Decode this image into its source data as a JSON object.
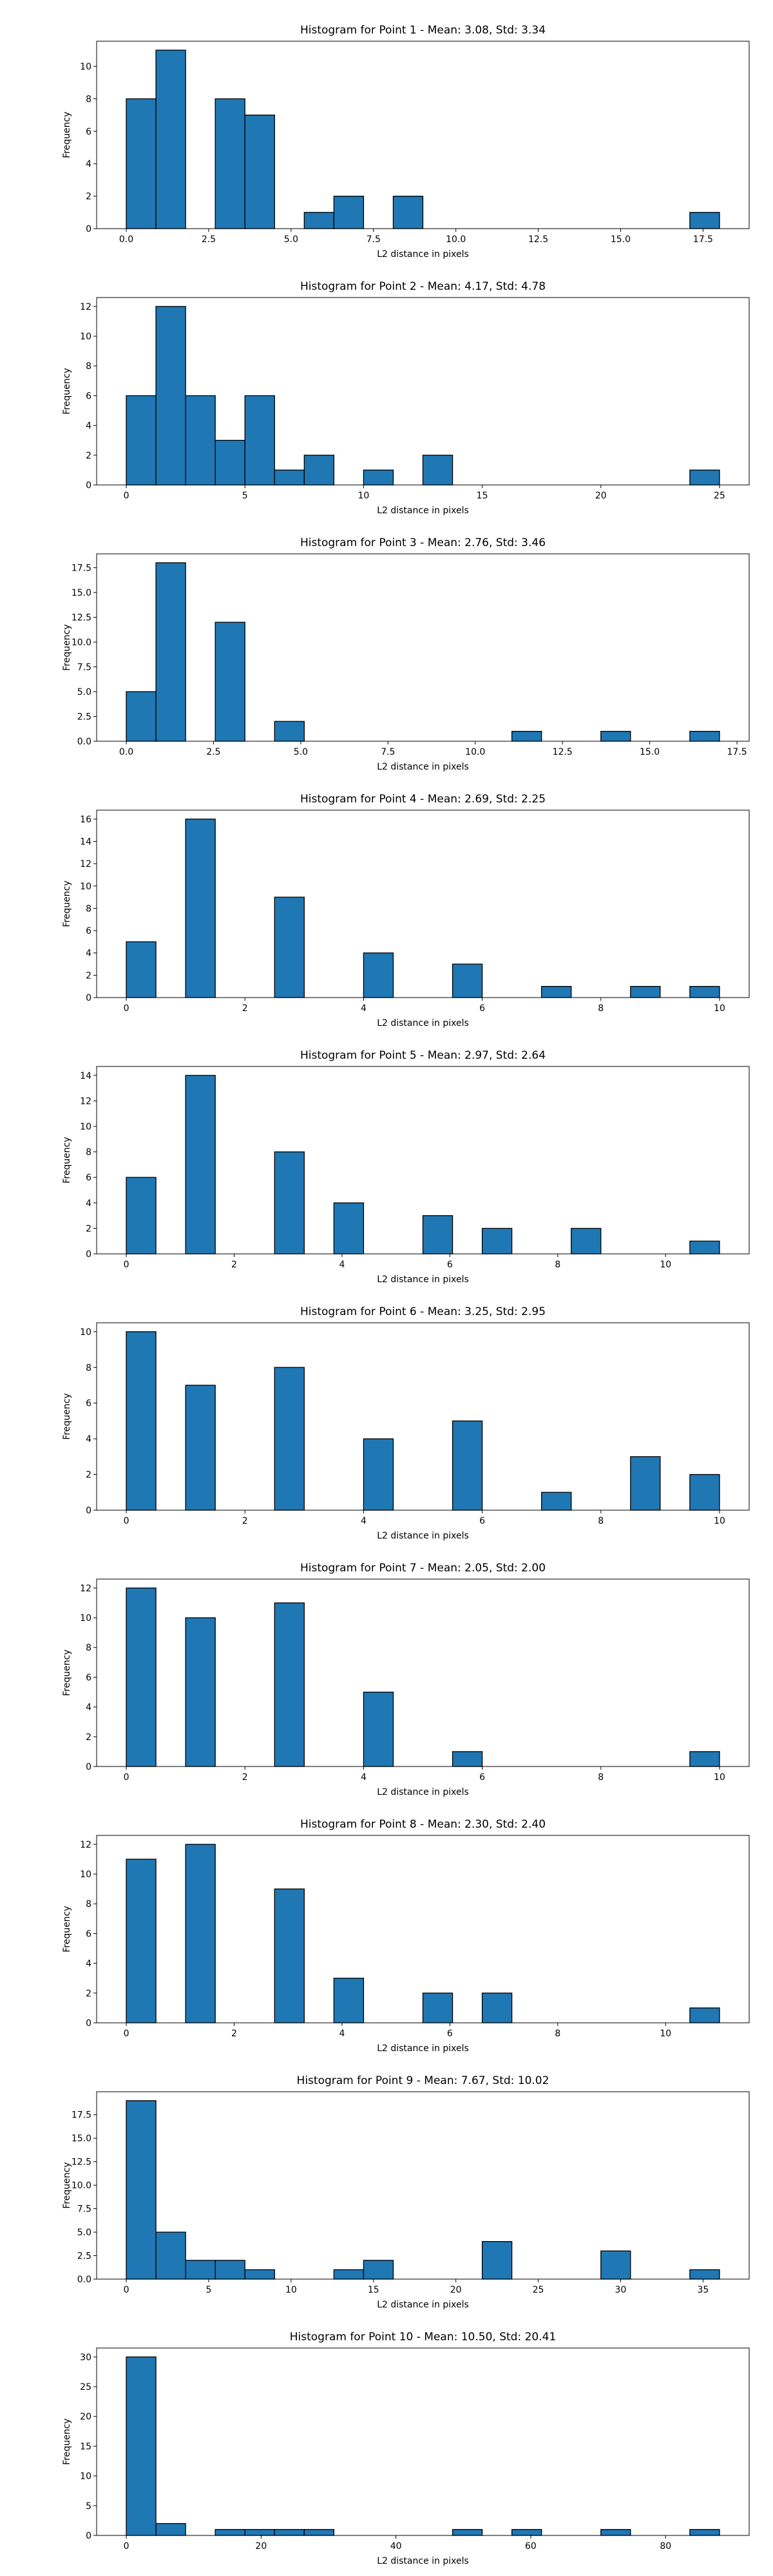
{
  "figure": {
    "background": "#ffffff",
    "bar_color": "#1f77b4",
    "edge_color": "#000000"
  },
  "chart_data": [
    {
      "type": "bar",
      "title": "Histogram for Point 1 - Mean: 3.08, Std: 3.34",
      "xlabel": "L2 distance in pixels",
      "ylabel": "Frequency",
      "xlim": [
        -0.9,
        18.9
      ],
      "ylim": [
        0,
        11.55
      ],
      "xticks": [
        0,
        2.5,
        5,
        7.5,
        10,
        12.5,
        15,
        17.5
      ],
      "xtick_labels": [
        "0.0",
        "2.5",
        "5.0",
        "7.5",
        "10.0",
        "12.5",
        "15.0",
        "17.5"
      ],
      "yticks": [
        0,
        2,
        4,
        6,
        8,
        10
      ],
      "ytick_labels": [
        "0",
        "2",
        "4",
        "6",
        "8",
        "10"
      ],
      "bins": [
        [
          0.0,
          0.9
        ],
        [
          0.9,
          1.8
        ],
        [
          2.7,
          3.6
        ],
        [
          3.6,
          4.5
        ],
        [
          5.4,
          6.3
        ],
        [
          6.3,
          7.2
        ],
        [
          8.1,
          9.0
        ],
        [
          17.1,
          18.0
        ]
      ],
      "values": [
        8,
        11,
        8,
        7,
        1,
        2,
        2,
        1
      ]
    },
    {
      "type": "bar",
      "title": "Histogram for Point 2 - Mean: 4.17, Std: 4.78",
      "xlabel": "L2 distance in pixels",
      "ylabel": "Frequency",
      "xlim": [
        -1.25,
        26.25
      ],
      "ylim": [
        0,
        12.6
      ],
      "xticks": [
        0,
        5,
        10,
        15,
        20,
        25
      ],
      "xtick_labels": [
        "0",
        "5",
        "10",
        "15",
        "20",
        "25"
      ],
      "yticks": [
        0,
        2,
        4,
        6,
        8,
        10,
        12
      ],
      "ytick_labels": [
        "0",
        "2",
        "4",
        "6",
        "8",
        "10",
        "12"
      ],
      "bins": [
        [
          0.0,
          1.25
        ],
        [
          1.25,
          2.5
        ],
        [
          2.5,
          3.75
        ],
        [
          3.75,
          5.0
        ],
        [
          5.0,
          6.25
        ],
        [
          6.25,
          7.5
        ],
        [
          7.5,
          8.75
        ],
        [
          10.0,
          11.25
        ],
        [
          12.5,
          13.75
        ],
        [
          23.75,
          25.0
        ]
      ],
      "values": [
        6,
        12,
        6,
        3,
        6,
        1,
        2,
        1,
        2,
        1
      ]
    },
    {
      "type": "bar",
      "title": "Histogram for Point 3 - Mean: 2.76, Std: 3.46",
      "xlabel": "L2 distance in pixels",
      "ylabel": "Frequency",
      "xlim": [
        -0.85,
        17.85
      ],
      "ylim": [
        0,
        18.9
      ],
      "xticks": [
        0,
        2.5,
        5,
        7.5,
        10,
        12.5,
        15,
        17.5
      ],
      "xtick_labels": [
        "0.0",
        "2.5",
        "5.0",
        "7.5",
        "10.0",
        "12.5",
        "15.0",
        "17.5"
      ],
      "yticks": [
        0,
        2.5,
        5,
        7.5,
        10,
        12.5,
        15,
        17.5
      ],
      "ytick_labels": [
        "0.0",
        "2.5",
        "5.0",
        "7.5",
        "10.0",
        "12.5",
        "15.0",
        "17.5"
      ],
      "bins": [
        [
          0.0,
          0.85
        ],
        [
          0.85,
          1.7
        ],
        [
          2.55,
          3.4
        ],
        [
          4.25,
          5.1
        ],
        [
          11.05,
          11.9
        ],
        [
          13.6,
          14.45
        ],
        [
          16.15,
          17.0
        ]
      ],
      "values": [
        5,
        18,
        12,
        2,
        1,
        1,
        1
      ]
    },
    {
      "type": "bar",
      "title": "Histogram for Point 4 - Mean: 2.69, Std: 2.25",
      "xlabel": "L2 distance in pixels",
      "ylabel": "Frequency",
      "xlim": [
        -0.5,
        10.5
      ],
      "ylim": [
        0,
        16.8
      ],
      "xticks": [
        0,
        2,
        4,
        6,
        8,
        10
      ],
      "xtick_labels": [
        "0",
        "2",
        "4",
        "6",
        "8",
        "10"
      ],
      "yticks": [
        0,
        2,
        4,
        6,
        8,
        10,
        12,
        14,
        16
      ],
      "ytick_labels": [
        "0",
        "2",
        "4",
        "6",
        "8",
        "10",
        "12",
        "14",
        "16"
      ],
      "bins": [
        [
          0.0,
          0.5
        ],
        [
          1.0,
          1.5
        ],
        [
          2.5,
          3.0
        ],
        [
          4.0,
          4.5
        ],
        [
          5.5,
          6.0
        ],
        [
          7.0,
          7.5
        ],
        [
          8.5,
          9.0
        ],
        [
          9.5,
          10.0
        ]
      ],
      "values": [
        5,
        16,
        9,
        4,
        3,
        1,
        1,
        1
      ]
    },
    {
      "type": "bar",
      "title": "Histogram for Point 5 - Mean: 2.97, Std: 2.64",
      "xlabel": "L2 distance in pixels",
      "ylabel": "Frequency",
      "xlim": [
        -0.55,
        11.55
      ],
      "ylim": [
        0,
        14.7
      ],
      "xticks": [
        0,
        2,
        4,
        6,
        8,
        10
      ],
      "xtick_labels": [
        "0",
        "2",
        "4",
        "6",
        "8",
        "10"
      ],
      "yticks": [
        0,
        2,
        4,
        6,
        8,
        10,
        12,
        14
      ],
      "ytick_labels": [
        "0",
        "2",
        "4",
        "6",
        "8",
        "10",
        "12",
        "14"
      ],
      "bins": [
        [
          0.0,
          0.55
        ],
        [
          1.1,
          1.65
        ],
        [
          2.75,
          3.3
        ],
        [
          3.85,
          4.4
        ],
        [
          5.5,
          6.05
        ],
        [
          6.6,
          7.15
        ],
        [
          8.25,
          8.8
        ],
        [
          10.45,
          11.0
        ]
      ],
      "values": [
        6,
        14,
        8,
        4,
        3,
        2,
        2,
        1
      ]
    },
    {
      "type": "bar",
      "title": "Histogram for Point 6 - Mean: 3.25, Std: 2.95",
      "xlabel": "L2 distance in pixels",
      "ylabel": "Frequency",
      "xlim": [
        -0.5,
        10.5
      ],
      "ylim": [
        0,
        10.5
      ],
      "xticks": [
        0,
        2,
        4,
        6,
        8,
        10
      ],
      "xtick_labels": [
        "0",
        "2",
        "4",
        "6",
        "8",
        "10"
      ],
      "yticks": [
        0,
        2,
        4,
        6,
        8,
        10
      ],
      "ytick_labels": [
        "0",
        "2",
        "4",
        "6",
        "8",
        "10"
      ],
      "bins": [
        [
          0.0,
          0.5
        ],
        [
          1.0,
          1.5
        ],
        [
          2.5,
          3.0
        ],
        [
          4.0,
          4.5
        ],
        [
          5.5,
          6.0
        ],
        [
          7.0,
          7.5
        ],
        [
          8.5,
          9.0
        ],
        [
          9.5,
          10.0
        ]
      ],
      "values": [
        10,
        7,
        8,
        4,
        5,
        1,
        3,
        2
      ]
    },
    {
      "type": "bar",
      "title": "Histogram for Point 7 - Mean: 2.05, Std: 2.00",
      "xlabel": "L2 distance in pixels",
      "ylabel": "Frequency",
      "xlim": [
        -0.5,
        10.5
      ],
      "ylim": [
        0,
        12.6
      ],
      "xticks": [
        0,
        2,
        4,
        6,
        8,
        10
      ],
      "xtick_labels": [
        "0",
        "2",
        "4",
        "6",
        "8",
        "10"
      ],
      "yticks": [
        0,
        2,
        4,
        6,
        8,
        10,
        12
      ],
      "ytick_labels": [
        "0",
        "2",
        "4",
        "6",
        "8",
        "10",
        "12"
      ],
      "bins": [
        [
          0.0,
          0.5
        ],
        [
          1.0,
          1.5
        ],
        [
          2.5,
          3.0
        ],
        [
          4.0,
          4.5
        ],
        [
          5.5,
          6.0
        ],
        [
          9.5,
          10.0
        ]
      ],
      "values": [
        12,
        10,
        11,
        5,
        1,
        1
      ]
    },
    {
      "type": "bar",
      "title": "Histogram for Point 8 - Mean: 2.30, Std: 2.40",
      "xlabel": "L2 distance in pixels",
      "ylabel": "Frequency",
      "xlim": [
        -0.55,
        11.55
      ],
      "ylim": [
        0,
        12.6
      ],
      "xticks": [
        0,
        2,
        4,
        6,
        8,
        10
      ],
      "xtick_labels": [
        "0",
        "2",
        "4",
        "6",
        "8",
        "10"
      ],
      "yticks": [
        0,
        2,
        4,
        6,
        8,
        10,
        12
      ],
      "ytick_labels": [
        "0",
        "2",
        "4",
        "6",
        "8",
        "10",
        "12"
      ],
      "bins": [
        [
          0.0,
          0.55
        ],
        [
          1.1,
          1.65
        ],
        [
          2.75,
          3.3
        ],
        [
          3.85,
          4.4
        ],
        [
          5.5,
          6.05
        ],
        [
          6.6,
          7.15
        ],
        [
          10.45,
          11.0
        ]
      ],
      "values": [
        11,
        12,
        9,
        3,
        2,
        2,
        1
      ]
    },
    {
      "type": "bar",
      "title": "Histogram for Point 9 - Mean: 7.67, Std: 10.02",
      "xlabel": "L2 distance in pixels",
      "ylabel": "Frequency",
      "xlim": [
        -1.8,
        37.8
      ],
      "ylim": [
        0,
        19.95
      ],
      "xticks": [
        0,
        5,
        10,
        15,
        20,
        25,
        30,
        35
      ],
      "xtick_labels": [
        "0",
        "5",
        "10",
        "15",
        "20",
        "25",
        "30",
        "35"
      ],
      "yticks": [
        0,
        2.5,
        5,
        7.5,
        10,
        12.5,
        15,
        17.5
      ],
      "ytick_labels": [
        "0.0",
        "2.5",
        "5.0",
        "7.5",
        "10.0",
        "12.5",
        "15.0",
        "17.5"
      ],
      "bins": [
        [
          0.0,
          1.8
        ],
        [
          1.8,
          3.6
        ],
        [
          3.6,
          5.4
        ],
        [
          5.4,
          7.2
        ],
        [
          7.2,
          9.0
        ],
        [
          12.6,
          14.4
        ],
        [
          14.4,
          16.2
        ],
        [
          21.6,
          23.4
        ],
        [
          28.8,
          30.6
        ],
        [
          34.2,
          36.0
        ]
      ],
      "values": [
        19,
        5,
        2,
        2,
        1,
        1,
        2,
        4,
        3,
        1
      ]
    },
    {
      "type": "bar",
      "title": "Histogram for Point 10 - Mean: 10.50, Std: 20.41",
      "xlabel": "L2 distance in pixels",
      "ylabel": "Frequency",
      "xlim": [
        -4.4,
        92.4
      ],
      "ylim": [
        0,
        31.5
      ],
      "xticks": [
        0,
        20,
        40,
        60,
        80
      ],
      "xtick_labels": [
        "0",
        "20",
        "40",
        "60",
        "80"
      ],
      "yticks": [
        0,
        5,
        10,
        15,
        20,
        25,
        30
      ],
      "ytick_labels": [
        "0",
        "5",
        "10",
        "15",
        "20",
        "25",
        "30"
      ],
      "bins": [
        [
          0.0,
          4.4
        ],
        [
          4.4,
          8.8
        ],
        [
          13.2,
          17.6
        ],
        [
          17.6,
          22.0
        ],
        [
          22.0,
          26.4
        ],
        [
          26.4,
          30.8
        ],
        [
          48.4,
          52.8
        ],
        [
          57.2,
          61.6
        ],
        [
          70.4,
          74.8
        ],
        [
          83.6,
          88.0
        ]
      ],
      "values": [
        30,
        2,
        1,
        1,
        1,
        1,
        1,
        1,
        1,
        1
      ]
    }
  ]
}
